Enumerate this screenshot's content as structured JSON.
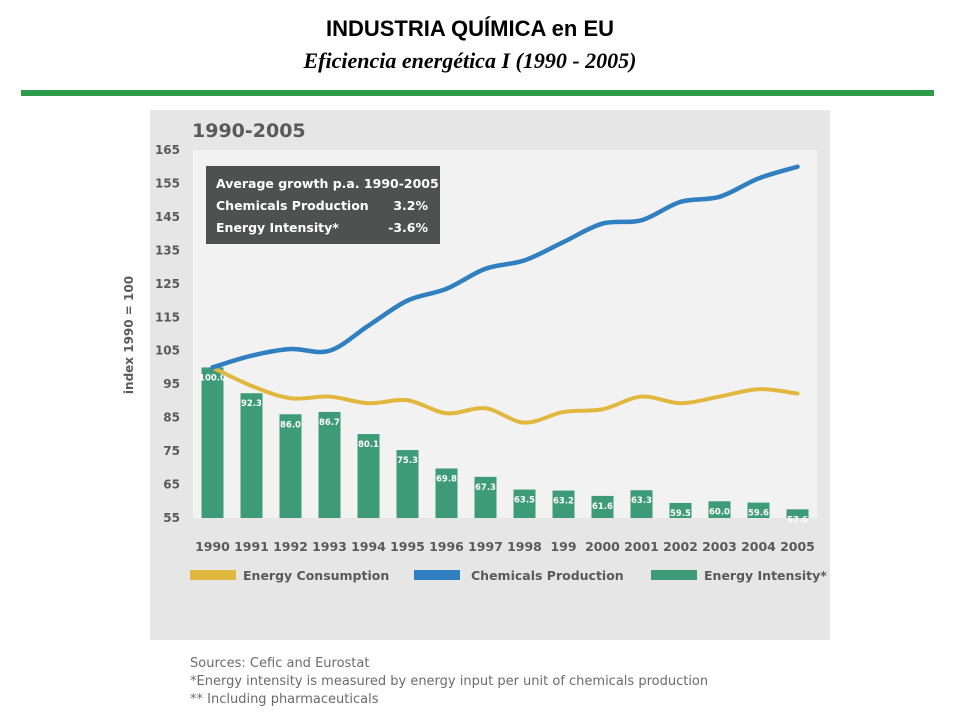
{
  "slide": {
    "title": "INDUSTRIA QUÍMICA en EU",
    "subtitle": "Eficiencia energética  I (1990 - 2005)"
  },
  "colors": {
    "rule": "#2e9a4c",
    "panel_bg": "#e6e6e6",
    "consumption": "#e2b73e",
    "production": "#2f7fc1",
    "intensity": "#3d9b78",
    "infobox_bg": "#4f5050"
  },
  "chart_data": {
    "type": "bar+line",
    "title": "1990-2005",
    "ylabel": "index 1990 = 100",
    "xlabel": "",
    "ylim": [
      55,
      165
    ],
    "yticks": [
      55,
      65,
      75,
      85,
      95,
      105,
      115,
      125,
      135,
      145,
      155,
      165
    ],
    "grid": false,
    "legend_position": "bottom",
    "categories": [
      "1990",
      "1991",
      "1992",
      "1993",
      "1994",
      "1995",
      "1996",
      "1997",
      "1998",
      "199",
      "2000",
      "2001",
      "2002",
      "2003",
      "2004",
      "2005"
    ],
    "series": [
      {
        "name": "Energy Consumption",
        "kind": "line",
        "values": [
          100,
          94.5,
          90.8,
          91.3,
          89.3,
          90.2,
          86.3,
          87.8,
          83.5,
          86.7,
          87.5,
          91.3,
          89.3,
          91.3,
          93.5,
          92.2
        ]
      },
      {
        "name": "Chemicals Production",
        "kind": "line",
        "values": [
          100,
          103.5,
          105.5,
          105,
          112.5,
          120,
          123.5,
          129.5,
          132,
          137.5,
          143,
          144,
          149.5,
          151,
          156.5,
          160
        ]
      },
      {
        "name": "Energy Intensity*",
        "kind": "bar",
        "values": [
          100.0,
          92.3,
          86.0,
          86.7,
          80.1,
          75.3,
          69.8,
          67.3,
          63.5,
          63.2,
          61.6,
          63.3,
          59.5,
          60.0,
          59.6,
          57.6
        ],
        "labels": [
          "100.0",
          "92.3",
          "86.0",
          "86.7",
          "80.1",
          "75.3",
          "69.8",
          "67.3",
          "63.5",
          "63.2",
          "61.6",
          "63.3",
          "59.5",
          "60.0",
          "59.6",
          "57.6"
        ]
      }
    ],
    "infobox": {
      "heading": "Average growth p.a. 1990-2005",
      "rows": [
        {
          "label": "Chemicals Production",
          "value": "3.2%"
        },
        {
          "label": "Energy Intensity*",
          "value": "-3.6%"
        }
      ]
    }
  },
  "sources": {
    "line1": "Sources: Cefic and Eurostat",
    "line2": "*Energy intensity is measured by energy input per unit of chemicals production",
    "line3": "** Including pharmaceuticals"
  }
}
